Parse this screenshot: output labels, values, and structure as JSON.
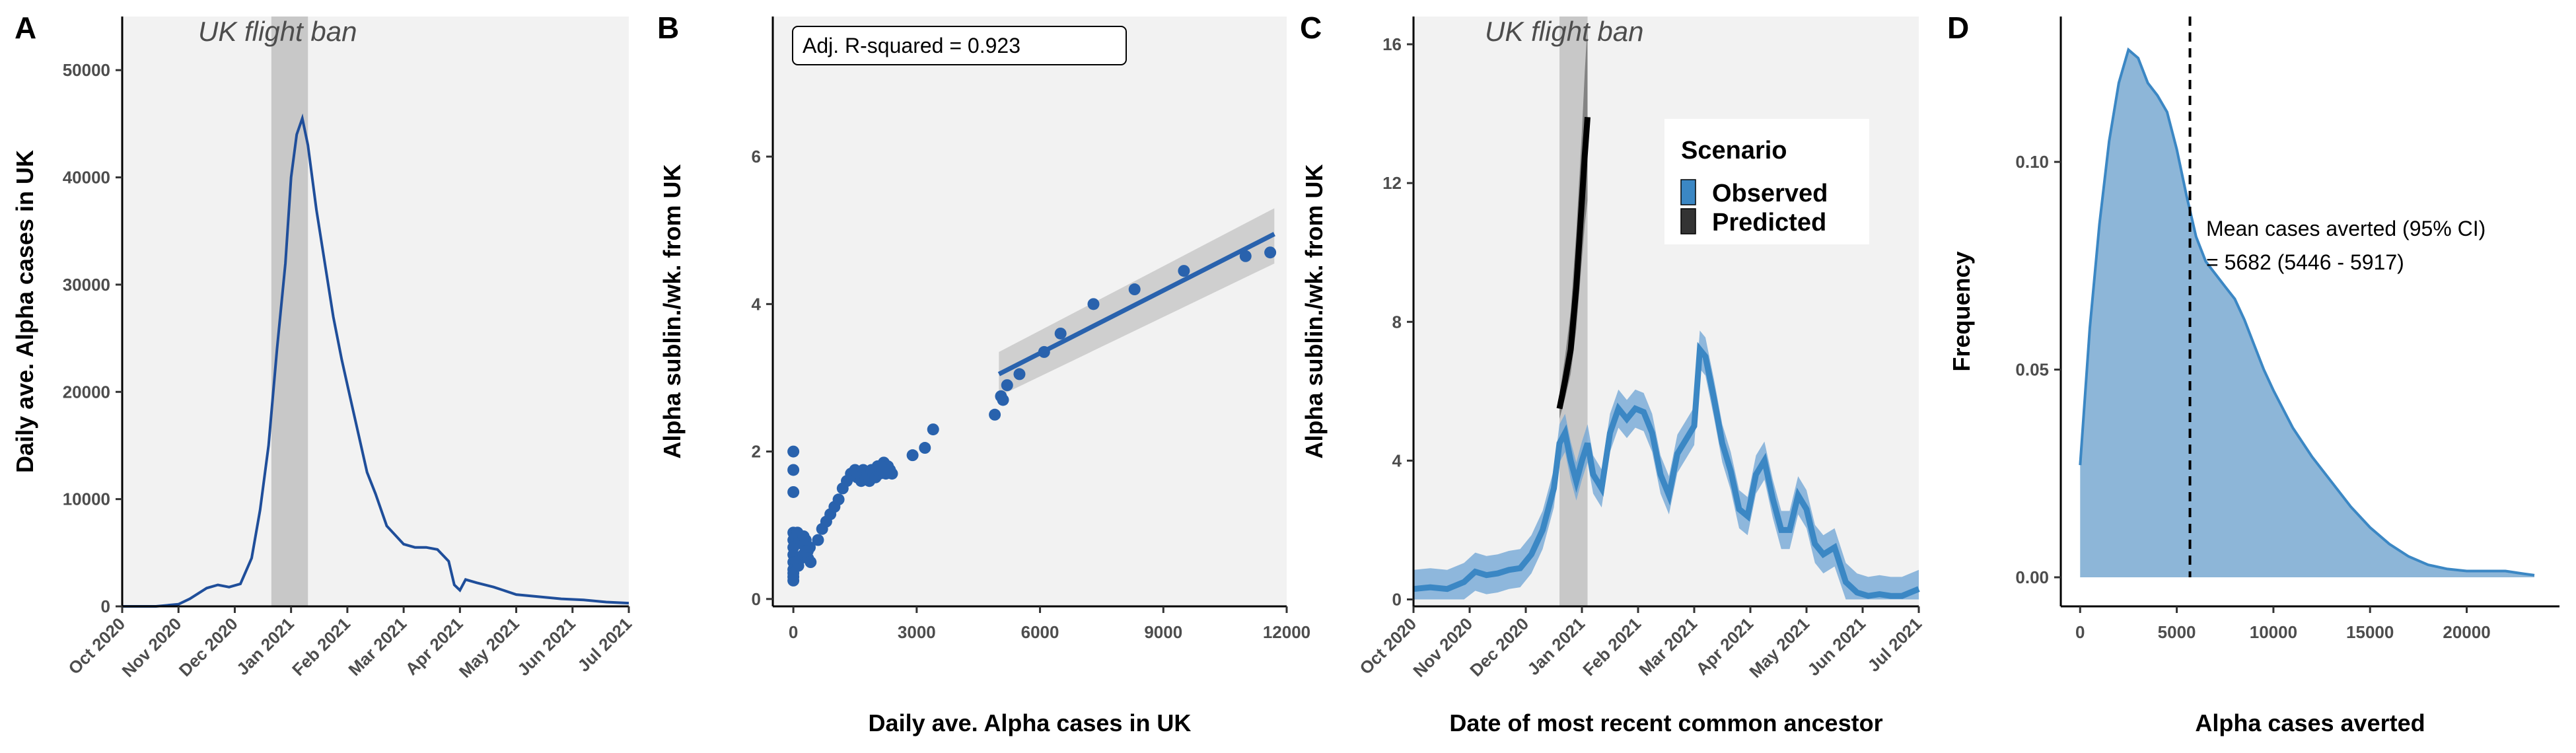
{
  "colors": {
    "observed": "#3b87c4",
    "observed_band": "#74a8d6",
    "predicted": "#000000",
    "line_blue": "#1f4e9a",
    "points": "#2962ad",
    "density_fill": "#8db6d8",
    "density_line": "#3b87c4",
    "panel_bg": "#f2f2f2",
    "ban_shade": "#c8c8c8",
    "ci_band": "#cfcfcf"
  },
  "chart_data": [
    {
      "panel": "A",
      "type": "line",
      "xlabel": "",
      "ylabel": "Daily ave. Alpha cases in UK",
      "x_ticks": [
        "Oct 2020",
        "Nov 2020",
        "Dec 2020",
        "Jan 2021",
        "Feb 2021",
        "Mar 2021",
        "Apr 2021",
        "May 2021",
        "Jun 2021",
        "Jul 2021"
      ],
      "xlim": [
        0,
        9
      ],
      "ylim": [
        0,
        55000
      ],
      "y_ticks": [
        0,
        10000,
        20000,
        30000,
        40000,
        50000
      ],
      "annotation": "UK flight ban",
      "shaded_region": [
        2.65,
        3.3
      ],
      "series": [
        {
          "x": [
            0,
            0.6,
            1.0,
            1.2,
            1.5,
            1.7,
            1.9,
            2.1,
            2.3,
            2.45,
            2.6,
            2.75,
            2.9,
            3.0,
            3.1,
            3.2,
            3.3,
            3.45,
            3.6,
            3.75,
            3.9,
            4.05,
            4.2,
            4.35,
            4.5,
            4.7,
            5.0,
            5.2,
            5.4,
            5.6,
            5.8,
            5.9,
            6.0,
            6.1,
            6.3,
            6.6,
            7.0,
            7.4,
            7.8,
            8.2,
            8.6,
            9.0
          ],
          "y": [
            0,
            0,
            200,
            700,
            1700,
            2000,
            1800,
            2100,
            4500,
            9000,
            15000,
            24000,
            32000,
            40000,
            44000,
            45500,
            43000,
            37000,
            32000,
            27000,
            23000,
            19500,
            16000,
            12500,
            10500,
            7500,
            5800,
            5500,
            5500,
            5300,
            4200,
            2000,
            1500,
            2500,
            2200,
            1800,
            1100,
            900,
            700,
            600,
            400,
            300
          ]
        }
      ]
    },
    {
      "panel": "B",
      "type": "scatter",
      "xlabel": "Daily ave. Alpha cases in UK",
      "ylabel": "Alpha sublin./wk. from UK",
      "x_ticks": [
        0,
        3000,
        6000,
        9000,
        12000
      ],
      "y_ticks": [
        0,
        2,
        4,
        6
      ],
      "xlim": [
        -500,
        12000
      ],
      "ylim": [
        -0.1,
        7.9
      ],
      "annotation": "Adj. R-squared = 0.923",
      "points": {
        "x": [
          0,
          0,
          0,
          0,
          0,
          0,
          0,
          0,
          0,
          0,
          0,
          0,
          50,
          100,
          150,
          200,
          250,
          300,
          350,
          400,
          60,
          120,
          180,
          240,
          300,
          360,
          420,
          600,
          700,
          800,
          900,
          1000,
          1100,
          1200,
          1300,
          1400,
          1500,
          1550,
          1600,
          1650,
          1700,
          1750,
          1800,
          1850,
          1900,
          1950,
          2000,
          2050,
          2100,
          2150,
          2200,
          2250,
          2300,
          2350,
          2400,
          2900,
          3200,
          3400,
          4900,
          5050,
          5100,
          5200,
          5500,
          6100,
          6500,
          7300,
          8300,
          9500,
          11000,
          11600
        ],
        "y": [
          2.0,
          1.75,
          1.45,
          0.9,
          0.8,
          0.7,
          0.6,
          0.5,
          0.4,
          0.35,
          0.3,
          0.25,
          0.85,
          0.9,
          0.8,
          0.75,
          0.85,
          0.8,
          0.65,
          0.7,
          0.5,
          0.45,
          0.55,
          0.6,
          0.65,
          0.55,
          0.5,
          0.8,
          0.95,
          1.05,
          1.15,
          1.25,
          1.35,
          1.5,
          1.6,
          1.7,
          1.75,
          1.65,
          1.7,
          1.6,
          1.75,
          1.65,
          1.7,
          1.6,
          1.75,
          1.7,
          1.65,
          1.8,
          1.7,
          1.75,
          1.85,
          1.7,
          1.8,
          1.75,
          1.7,
          1.95,
          2.05,
          2.3,
          2.5,
          2.75,
          2.7,
          2.9,
          3.05,
          3.35,
          3.6,
          4.0,
          4.2,
          4.45,
          4.65,
          4.7
        ]
      },
      "fit": {
        "x0": 5000,
        "x1": 11700,
        "y0": 3.05,
        "y1": 4.95,
        "band_lo0": 2.75,
        "band_hi0": 3.35,
        "band_lo1": 4.55,
        "band_hi1": 5.3
      }
    },
    {
      "panel": "C",
      "type": "line",
      "xlabel": "Date of most recent common ancestor",
      "ylabel": "Alpha sublin./wk. from UK",
      "x_ticks": [
        "Oct 2020",
        "Nov 2020",
        "Dec 2020",
        "Jan 2021",
        "Feb 2021",
        "Mar 2021",
        "Apr 2021",
        "May 2021",
        "Jun 2021",
        "Jul 2021"
      ],
      "xlim": [
        0,
        9
      ],
      "y_ticks": [
        0,
        4,
        8,
        12,
        16
      ],
      "ylim": [
        -0.2,
        16.8
      ],
      "annotation": "UK flight ban",
      "shaded_region": [
        2.6,
        3.1
      ],
      "legend": {
        "title": "Scenario",
        "entries": [
          "Observed",
          "Predicted"
        ],
        "position": "top-right"
      },
      "series": [
        {
          "name": "Observed",
          "x": [
            0,
            0.3,
            0.6,
            0.9,
            1.1,
            1.3,
            1.5,
            1.7,
            1.9,
            2.1,
            2.3,
            2.5,
            2.6,
            2.7,
            2.8,
            2.9,
            3.0,
            3.1,
            3.2,
            3.35,
            3.5,
            3.65,
            3.8,
            3.95,
            4.1,
            4.25,
            4.4,
            4.55,
            4.7,
            4.85,
            5.0,
            5.1,
            5.2,
            5.35,
            5.5,
            5.65,
            5.8,
            5.95,
            6.1,
            6.25,
            6.4,
            6.55,
            6.7,
            6.85,
            7.0,
            7.15,
            7.3,
            7.5,
            7.7,
            7.9,
            8.1,
            8.3,
            8.5,
            8.7,
            9.0
          ],
          "y": [
            0.3,
            0.35,
            0.3,
            0.5,
            0.8,
            0.7,
            0.75,
            0.85,
            0.9,
            1.3,
            2.0,
            3.2,
            4.5,
            4.8,
            4.0,
            3.4,
            4.0,
            4.5,
            3.6,
            3.2,
            4.8,
            5.5,
            5.2,
            5.5,
            5.4,
            4.8,
            3.6,
            3.0,
            4.2,
            4.6,
            5.0,
            7.2,
            7.0,
            5.8,
            4.5,
            3.7,
            2.6,
            2.4,
            3.6,
            4.0,
            2.9,
            2.0,
            2.0,
            3.0,
            2.6,
            1.6,
            1.3,
            1.5,
            0.5,
            0.2,
            0.1,
            0.15,
            0.1,
            0.1,
            0.3
          ],
          "band": 0.55
        },
        {
          "name": "Predicted",
          "x": [
            2.6,
            2.7,
            2.8,
            2.9,
            3.0,
            3.05,
            3.1
          ],
          "y": [
            5.5,
            6.3,
            7.2,
            9.0,
            11.5,
            12.8,
            13.9
          ],
          "band_hi": [
            5.9,
            7.0,
            8.3,
            10.6,
            13.5,
            15.2,
            16.6
          ],
          "band_lo": [
            5.2,
            5.8,
            6.5,
            7.8,
            9.8,
            10.8,
            11.5
          ]
        }
      ]
    },
    {
      "panel": "D",
      "type": "area",
      "xlabel": "Alpha cases averted",
      "ylabel": "Frequency",
      "x_ticks": [
        0,
        5000,
        10000,
        15000,
        20000
      ],
      "y_ticks": [
        0.0,
        0.05,
        0.1
      ],
      "xlim": [
        -1000,
        24800
      ],
      "ylim": [
        -0.007,
        0.135
      ],
      "mean_line": 5682,
      "annotation_line1": "Mean cases averted (95% CI)",
      "annotation_line2": "= 5682 (5446 - 5917)",
      "series": [
        {
          "x": [
            0,
            500,
            1000,
            1500,
            2000,
            2500,
            3000,
            3500,
            4000,
            4500,
            5000,
            5500,
            6000,
            6500,
            7000,
            7500,
            8000,
            8500,
            9000,
            9500,
            10000,
            11000,
            12000,
            13000,
            14000,
            15000,
            16000,
            17000,
            18000,
            19000,
            20000,
            21000,
            22000,
            23000,
            23500
          ],
          "y": [
            0.027,
            0.06,
            0.085,
            0.105,
            0.119,
            0.127,
            0.125,
            0.119,
            0.116,
            0.112,
            0.103,
            0.092,
            0.082,
            0.076,
            0.073,
            0.07,
            0.067,
            0.062,
            0.056,
            0.05,
            0.045,
            0.036,
            0.029,
            0.023,
            0.017,
            0.012,
            0.008,
            0.005,
            0.003,
            0.002,
            0.0015,
            0.0015,
            0.0015,
            0.0008,
            0.0005
          ]
        }
      ]
    }
  ]
}
